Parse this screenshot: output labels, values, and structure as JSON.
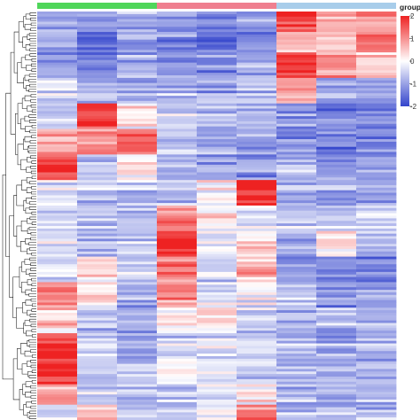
{
  "chart_data": {
    "type": "heatmap",
    "title": "",
    "columns": [
      "",
      "",
      "",
      "",
      "",
      "",
      "",
      "",
      ""
    ],
    "groups": [
      {
        "label": "",
        "columns": [
          0,
          1,
          2
        ],
        "color": "#4fd65a"
      },
      {
        "label": "",
        "columns": [
          3,
          4,
          5
        ],
        "color": "#ef7f8f"
      },
      {
        "label": "",
        "columns": [
          6,
          7,
          8
        ],
        "color": "#a8cdea"
      }
    ],
    "row_count": 160,
    "color_scale": {
      "min": -2,
      "max": 2,
      "low": "#3344cc",
      "mid": "#ffffff",
      "high": "#ee2222"
    },
    "legend": {
      "title": "group",
      "ticks": [
        "2",
        "1",
        "0",
        "-1",
        "-2"
      ],
      "tick_values": [
        2,
        1,
        0,
        -1,
        -2
      ],
      "placement": "right"
    },
    "dendrogram": "rows",
    "blocks": [
      {
        "rows": [
          0,
          8
        ],
        "means": [
          -0.9,
          -1.2,
          -0.8,
          -1.0,
          -1.3,
          -1.1,
          1.6,
          0.6,
          1.0
        ]
      },
      {
        "rows": [
          8,
          16
        ],
        "means": [
          -1.1,
          -1.5,
          -1.0,
          -1.2,
          -1.6,
          -1.3,
          0.5,
          0.4,
          1.1
        ]
      },
      {
        "rows": [
          16,
          26
        ],
        "means": [
          -1.0,
          -1.2,
          -0.9,
          -1.1,
          -1.3,
          -1.0,
          1.9,
          1.0,
          0.3
        ]
      },
      {
        "rows": [
          26,
          36
        ],
        "means": [
          -0.4,
          -0.9,
          -1.0,
          -0.8,
          -0.9,
          -0.7,
          0.7,
          -1.0,
          -0.9
        ]
      },
      {
        "rows": [
          36,
          46
        ],
        "means": [
          -0.6,
          1.7,
          0.2,
          -0.4,
          -0.7,
          -0.8,
          -1.1,
          -1.3,
          -1.3
        ]
      },
      {
        "rows": [
          46,
          56
        ],
        "means": [
          0.8,
          1.0,
          1.4,
          -0.7,
          -0.9,
          -1.0,
          -1.2,
          -1.4,
          -1.3
        ]
      },
      {
        "rows": [
          56,
          66
        ],
        "means": [
          1.6,
          -0.7,
          0.2,
          -1.0,
          -1.1,
          -1.2,
          -0.8,
          -1.2,
          -1.1
        ]
      },
      {
        "rows": [
          66,
          76
        ],
        "means": [
          -0.3,
          -0.6,
          -0.5,
          -0.6,
          0.0,
          2.2,
          -0.8,
          -0.9,
          -0.8
        ]
      },
      {
        "rows": [
          76,
          86
        ],
        "means": [
          -0.6,
          -0.8,
          -0.7,
          1.1,
          0.2,
          -0.3,
          -0.6,
          -0.6,
          -0.5
        ]
      },
      {
        "rows": [
          86,
          96
        ],
        "means": [
          -0.4,
          -0.7,
          -0.6,
          1.9,
          -0.3,
          0.2,
          -1.0,
          0.2,
          -0.9
        ]
      },
      {
        "rows": [
          96,
          106
        ],
        "means": [
          -0.3,
          0.4,
          -0.5,
          1.3,
          -0.5,
          0.7,
          -1.2,
          -1.3,
          -1.2
        ]
      },
      {
        "rows": [
          106,
          116
        ],
        "means": [
          1.3,
          0.3,
          -0.9,
          1.0,
          -0.3,
          -0.2,
          -0.6,
          -1.1,
          -0.9
        ]
      },
      {
        "rows": [
          116,
          126
        ],
        "means": [
          0.5,
          -0.7,
          -0.8,
          0.0,
          0.3,
          -0.5,
          -1.0,
          -0.7,
          -0.8
        ]
      },
      {
        "rows": [
          126,
          136
        ],
        "means": [
          2.0,
          -0.6,
          -0.8,
          -0.5,
          -0.4,
          -0.3,
          -0.8,
          -0.9,
          -0.7
        ]
      },
      {
        "rows": [
          136,
          146
        ],
        "means": [
          1.8,
          -0.9,
          -0.7,
          -0.2,
          -0.4,
          -0.6,
          -0.9,
          -1.0,
          -0.9
        ]
      },
      {
        "rows": [
          146,
          154
        ],
        "means": [
          1.0,
          -0.4,
          -0.6,
          -0.6,
          -0.2,
          0.1,
          -0.7,
          -0.8,
          -0.7
        ]
      },
      {
        "rows": [
          154,
          160
        ],
        "means": [
          -0.5,
          0.6,
          -0.4,
          -0.6,
          0.2,
          1.2,
          -0.8,
          -0.6,
          -0.7
        ]
      }
    ]
  }
}
